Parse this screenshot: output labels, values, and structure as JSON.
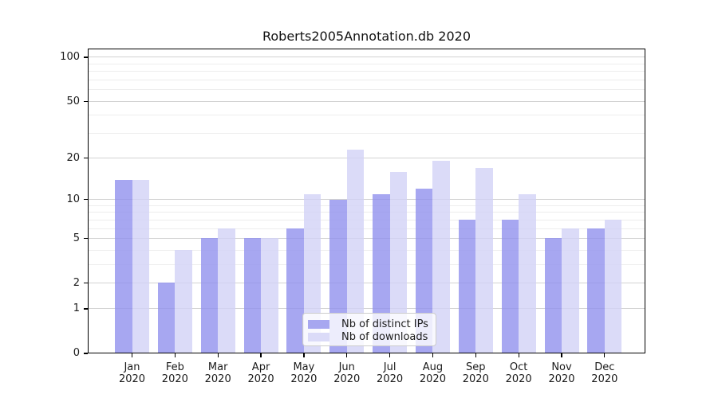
{
  "title": "Roberts2005Annotation.db 2020",
  "chart_data": {
    "type": "bar",
    "title": "Roberts2005Annotation.db 2020",
    "categories": [
      "Jan",
      "Feb",
      "Mar",
      "Apr",
      "May",
      "Jun",
      "Jul",
      "Aug",
      "Sep",
      "Oct",
      "Nov",
      "Dec"
    ],
    "x_tick_year_label": "2020",
    "series": [
      {
        "name": "Nb of distinct IPs",
        "color": "rgba(145,145,237,0.8)",
        "swatch_hex": "#a7a7f0",
        "values": [
          14,
          2,
          5,
          5,
          6,
          10,
          11,
          12,
          7,
          7,
          5,
          6
        ]
      },
      {
        "name": "Nb of downloads",
        "color": "rgba(210,210,246,0.8)",
        "swatch_hex": "#dbdbf8",
        "values": [
          14,
          4,
          6,
          5,
          11,
          23,
          16,
          19,
          17,
          11,
          6,
          7
        ]
      }
    ],
    "y_axis": {
      "scale": "log1p",
      "major_ticks": [
        0,
        1,
        2,
        5,
        10,
        20,
        50,
        100
      ],
      "minor_ticks": [
        3,
        4,
        6,
        7,
        8,
        9,
        30,
        40,
        60,
        70,
        80,
        90
      ],
      "ylim": [
        0,
        115
      ]
    },
    "xlabel": "",
    "ylabel": "",
    "grid": true,
    "legend_position": "lower-center",
    "colors": {
      "grid_major": "#d2d2d2",
      "grid_minor": "#ededed",
      "axis_frame": "#000000",
      "text": "#1a1a1a",
      "background": "#ffffff"
    }
  }
}
